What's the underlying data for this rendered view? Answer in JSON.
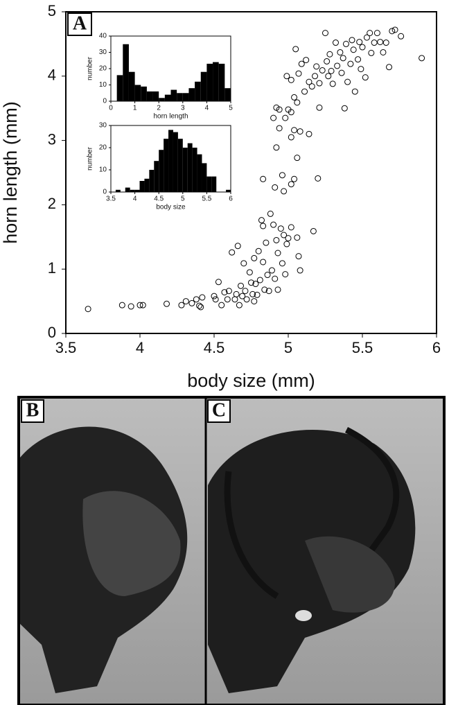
{
  "panel_labels": [
    "A",
    "B",
    "C"
  ],
  "chart_data": [
    {
      "type": "scatter",
      "xlabel": "body size (mm)",
      "ylabel": "horn length (mm)",
      "xlim": [
        3.5,
        6
      ],
      "ylim": [
        0,
        5
      ],
      "xticks": [
        3.5,
        4,
        4.5,
        5,
        5.5,
        6
      ],
      "yticks": [
        0,
        1,
        2,
        3,
        4,
        5
      ],
      "color": "#000000",
      "x": [
        3.65,
        3.88,
        3.94,
        4.0,
        4.02,
        4.18,
        4.28,
        4.31,
        4.35,
        4.38,
        4.4,
        4.42,
        4.41,
        4.5,
        4.53,
        4.51,
        4.55,
        4.57,
        4.59,
        4.6,
        4.62,
        4.64,
        4.65,
        4.66,
        4.67,
        4.68,
        4.69,
        4.7,
        4.71,
        4.72,
        4.74,
        4.75,
        4.76,
        4.77,
        4.77,
        4.78,
        4.79,
        4.8,
        4.81,
        4.82,
        4.83,
        4.83,
        4.84,
        4.85,
        4.86,
        4.87,
        4.88,
        4.89,
        4.9,
        4.91,
        4.92,
        4.93,
        4.93,
        4.95,
        4.96,
        4.97,
        4.98,
        4.99,
        5.0,
        5.02,
        5.06,
        5.07,
        5.08,
        5.17,
        4.83,
        4.91,
        4.96,
        4.97,
        5.02,
        5.04,
        5.2,
        4.92,
        5.06,
        4.94,
        4.98,
        5.02,
        5.04,
        5.08,
        5.14,
        4.9,
        4.92,
        4.94,
        5.0,
        5.02,
        5.04,
        5.06,
        5.11,
        5.14,
        5.21,
        4.99,
        5.02,
        5.05,
        5.07,
        5.09,
        5.12,
        5.16,
        5.18,
        5.19,
        5.21,
        5.23,
        5.25,
        5.26,
        5.27,
        5.28,
        5.29,
        5.3,
        5.32,
        5.33,
        5.35,
        5.36,
        5.37,
        5.38,
        5.39,
        5.4,
        5.42,
        5.43,
        5.44,
        5.45,
        5.47,
        5.48,
        5.49,
        5.5,
        5.52,
        5.53,
        5.55,
        5.56,
        5.58,
        5.6,
        5.62,
        5.64,
        5.66,
        5.68,
        5.7,
        5.72,
        5.76,
        5.9
      ],
      "y": [
        0.38,
        0.44,
        0.42,
        0.44,
        0.44,
        0.46,
        0.44,
        0.5,
        0.47,
        0.53,
        0.43,
        0.56,
        0.41,
        0.58,
        0.8,
        0.53,
        0.44,
        0.64,
        0.53,
        0.66,
        1.26,
        0.53,
        0.61,
        1.36,
        0.44,
        0.74,
        0.58,
        1.09,
        0.66,
        0.53,
        0.95,
        0.79,
        0.61,
        1.17,
        0.5,
        0.77,
        0.6,
        1.28,
        0.83,
        1.76,
        1.11,
        1.67,
        0.68,
        1.41,
        0.91,
        0.66,
        1.86,
        0.98,
        1.69,
        0.85,
        1.45,
        0.68,
        1.25,
        1.63,
        1.09,
        1.53,
        0.92,
        1.39,
        1.48,
        1.65,
        1.49,
        1.2,
        0.98,
        1.59,
        2.4,
        2.27,
        2.46,
        2.21,
        2.32,
        2.4,
        2.41,
        2.89,
        2.73,
        3.19,
        3.35,
        3.05,
        3.16,
        3.14,
        3.1,
        3.35,
        3.51,
        3.48,
        3.48,
        3.44,
        3.67,
        3.59,
        3.76,
        3.91,
        3.51,
        4.0,
        3.94,
        4.42,
        4.04,
        4.19,
        4.25,
        3.84,
        4.0,
        4.15,
        3.89,
        4.09,
        4.67,
        4.23,
        4.0,
        4.34,
        4.08,
        3.88,
        4.52,
        4.16,
        4.37,
        4.05,
        4.28,
        3.5,
        4.5,
        3.91,
        4.19,
        4.56,
        4.41,
        3.76,
        4.26,
        4.53,
        4.11,
        4.45,
        3.98,
        4.6,
        4.67,
        4.36,
        4.52,
        4.67,
        4.53,
        4.37,
        4.52,
        4.14,
        4.7,
        4.72,
        4.62,
        4.28
      ]
    },
    {
      "type": "histogram",
      "xlabel": "horn length",
      "ylabel": "number",
      "color": "#000000",
      "xlim": [
        0,
        5
      ],
      "ylim": [
        0,
        40
      ],
      "xticks": [
        0,
        1,
        2,
        3,
        4,
        5
      ],
      "yticks": [
        0,
        10,
        20,
        30,
        40
      ],
      "bins": [
        0.25,
        0.5,
        0.75,
        1,
        1.25,
        1.5,
        1.75,
        2,
        2.25,
        2.5,
        2.75,
        3,
        3.25,
        3.5,
        3.75,
        4,
        4.25,
        4.5,
        4.75,
        5
      ],
      "counts": [
        16,
        35,
        18,
        10,
        9,
        6,
        6,
        2,
        4,
        7,
        5,
        5,
        8,
        12,
        18,
        23,
        24,
        23,
        8
      ]
    },
    {
      "type": "histogram",
      "xlabel": "body size",
      "ylabel": "number",
      "color": "#000000",
      "xlim": [
        3.5,
        6
      ],
      "ylim": [
        0,
        30
      ],
      "xticks": [
        3.5,
        4,
        4.5,
        5,
        5.5,
        6
      ],
      "yticks": [
        0,
        10,
        20,
        30
      ],
      "bins": [
        3.6,
        3.7,
        3.8,
        3.9,
        4.0,
        4.1,
        4.2,
        4.3,
        4.4,
        4.5,
        4.6,
        4.7,
        4.8,
        4.9,
        5.0,
        5.1,
        5.2,
        5.3,
        5.4,
        5.5,
        5.6,
        5.7,
        5.8,
        5.9,
        6.0
      ],
      "counts": [
        1,
        0,
        2,
        1,
        1,
        5,
        6,
        10,
        14,
        19,
        24,
        28,
        27,
        24,
        20,
        22,
        20,
        17,
        13,
        7,
        7,
        0,
        0,
        1
      ]
    }
  ]
}
